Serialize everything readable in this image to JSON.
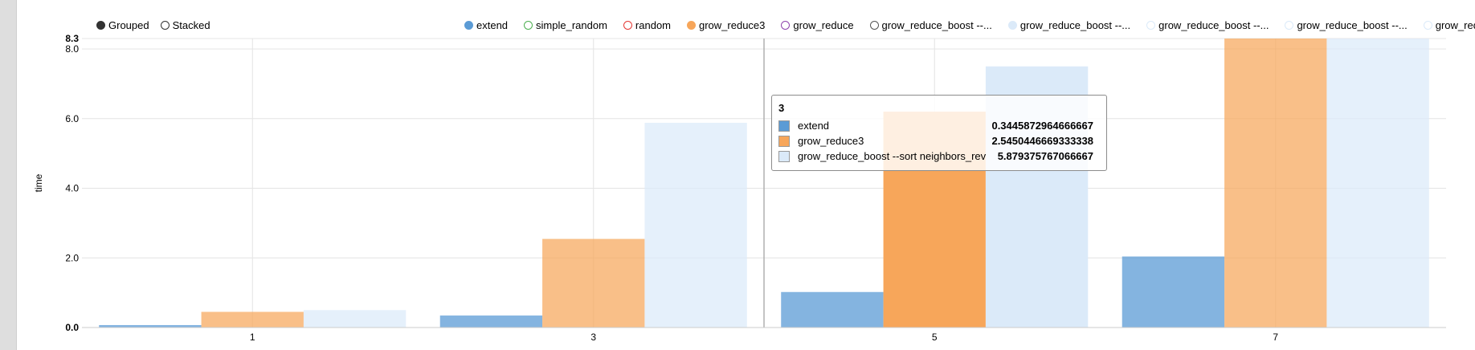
{
  "controls": [
    {
      "label": "Grouped",
      "selected": true
    },
    {
      "label": "Stacked",
      "selected": false
    }
  ],
  "legend": [
    {
      "label": "extend",
      "color": "#5b9bd5",
      "filled": true
    },
    {
      "label": "simple_random",
      "color": "#4caf50",
      "filled": false
    },
    {
      "label": "random",
      "color": "#e53935",
      "filled": false
    },
    {
      "label": "grow_reduce3",
      "color": "#f7a65a",
      "filled": true
    },
    {
      "label": "grow_reduce",
      "color": "#8e44ad",
      "filled": false
    },
    {
      "label": "grow_reduce_boost --...",
      "color": "#555555",
      "filled": false
    },
    {
      "label": "grow_reduce_boost --...",
      "color": "#dbeaf9",
      "filled": true
    },
    {
      "label": "grow_reduce_boost --...",
      "color": "#dbeaf9",
      "filled": false
    },
    {
      "label": "grow_reduce_boost --...",
      "color": "#dbeaf9",
      "filled": false
    },
    {
      "label": "grow_reduce_boost --...",
      "color": "#dbeaf9",
      "filled": false
    }
  ],
  "tooltip": {
    "title": "3",
    "rows": [
      {
        "key": "extend",
        "value": "0.3445872964666667",
        "color": "#5b9bd5"
      },
      {
        "key": "grow_reduce3",
        "value": "2.5450446669333338",
        "color": "#f7a65a"
      },
      {
        "key": "grow_reduce_boost --sort neighbors_rev",
        "value": "5.879375767066667",
        "color": "#dbeaf9"
      }
    ]
  },
  "chart_data": {
    "type": "bar",
    "mode": "grouped",
    "categories": [
      "1",
      "3",
      "5",
      "7"
    ],
    "series": [
      {
        "name": "extend",
        "color": "#5b9bd5",
        "values": [
          0.07,
          0.3445872964666667,
          1.02,
          2.04
        ]
      },
      {
        "name": "grow_reduce3",
        "color": "#f7a65a",
        "values": [
          0.45,
          2.5450446669333338,
          6.2,
          8.3
        ]
      },
      {
        "name": "grow_reduce_boost --sort neighbors_rev",
        "color": "#dbeaf9",
        "values": [
          0.5,
          5.879375767066667,
          7.5,
          8.3
        ]
      }
    ],
    "ylabel": "time",
    "xlabel": "",
    "ylim": [
      0,
      8.3
    ],
    "yticks": [
      0.0,
      2.0,
      4.0,
      6.0,
      8.0,
      8.3
    ],
    "ytick_labels": [
      "0.0",
      "2.0",
      "4.0",
      "6.0",
      "8.0",
      "8.3"
    ],
    "highlight_category": "5",
    "grid": true,
    "legend_position": "top"
  }
}
